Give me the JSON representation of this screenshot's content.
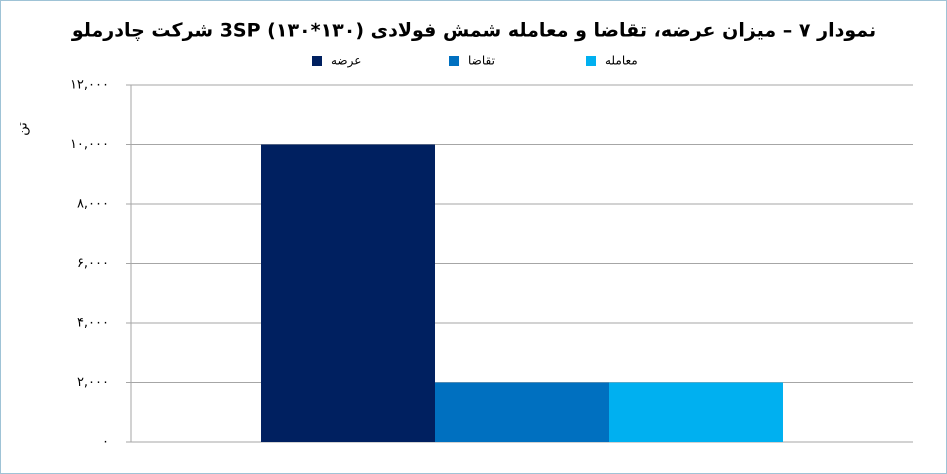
{
  "chart_data": {
    "type": "bar",
    "title": "نمودار ۷ – میزان عرضه، تقاضا و معامله شمش فولادی (۱۳۰*۱۳۰) 3SP شرکت چادرملو",
    "y_label": "تن",
    "series": [
      {
        "name": "عرضه",
        "color": "#002060",
        "values": [
          10000
        ]
      },
      {
        "name": "تقاضا",
        "color": "#0070c0",
        "values": [
          2000
        ]
      },
      {
        "name": "معامله",
        "color": "#00b0f0",
        "values": [
          2000
        ]
      }
    ],
    "ylim": [
      0,
      12000
    ],
    "yticks": [
      {
        "value": 0,
        "label": "۰"
      },
      {
        "value": 2000,
        "label": "۲,۰۰۰"
      },
      {
        "value": 4000,
        "label": "۴,۰۰۰"
      },
      {
        "value": 6000,
        "label": "۶,۰۰۰"
      },
      {
        "value": 8000,
        "label": "۸,۰۰۰"
      },
      {
        "value": 10000,
        "label": "۱۰,۰۰۰"
      },
      {
        "value": 12000,
        "label": "۱۲,۰۰۰"
      }
    ],
    "grid": true,
    "legend": "top"
  }
}
